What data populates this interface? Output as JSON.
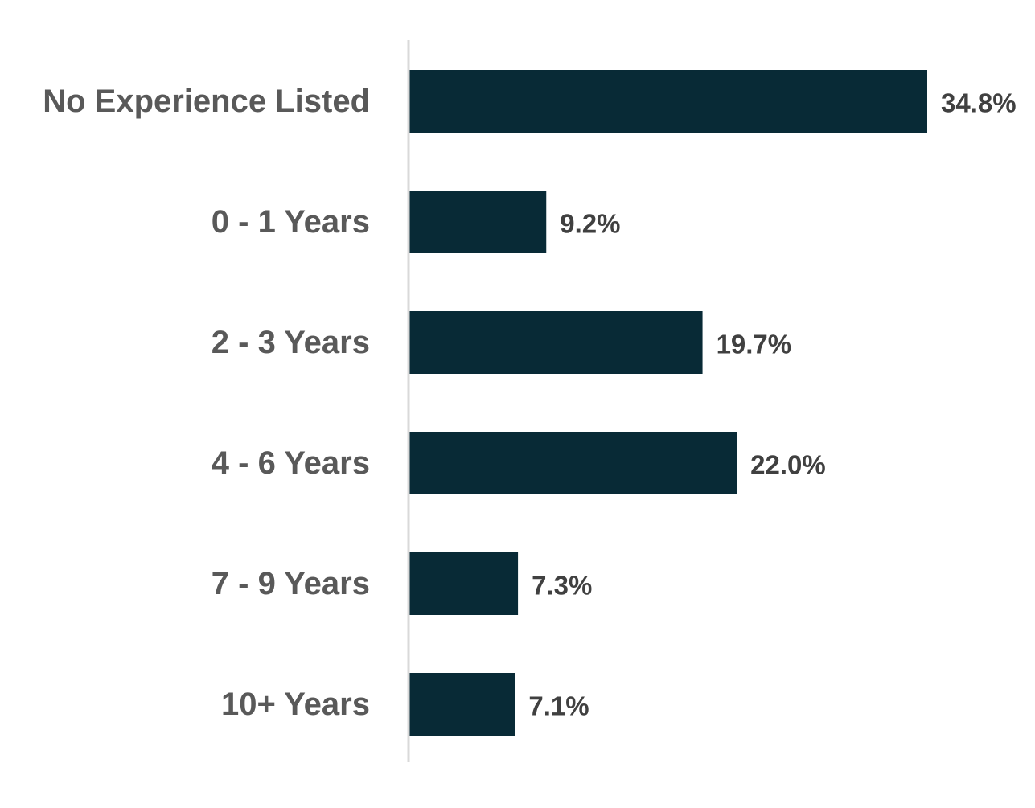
{
  "chart_data": {
    "type": "bar",
    "orientation": "horizontal",
    "categories": [
      "No Experience Listed",
      "0 - 1 Years",
      "2 - 3 Years",
      "4 - 6 Years",
      "7 - 9 Years",
      "10+ Years"
    ],
    "values": [
      34.8,
      9.2,
      19.7,
      22.0,
      7.3,
      7.1
    ],
    "value_labels": [
      "34.8%",
      "9.2%",
      "19.7%",
      "22.0%",
      "7.3%",
      "7.1%"
    ],
    "unit": "%",
    "xlim": [
      0,
      34.8
    ],
    "grid": false,
    "legend": "none"
  },
  "colors": {
    "bar": "#082a36",
    "category_text": "#595959",
    "value_text": "#404040",
    "axis": "#d9d9d9"
  }
}
